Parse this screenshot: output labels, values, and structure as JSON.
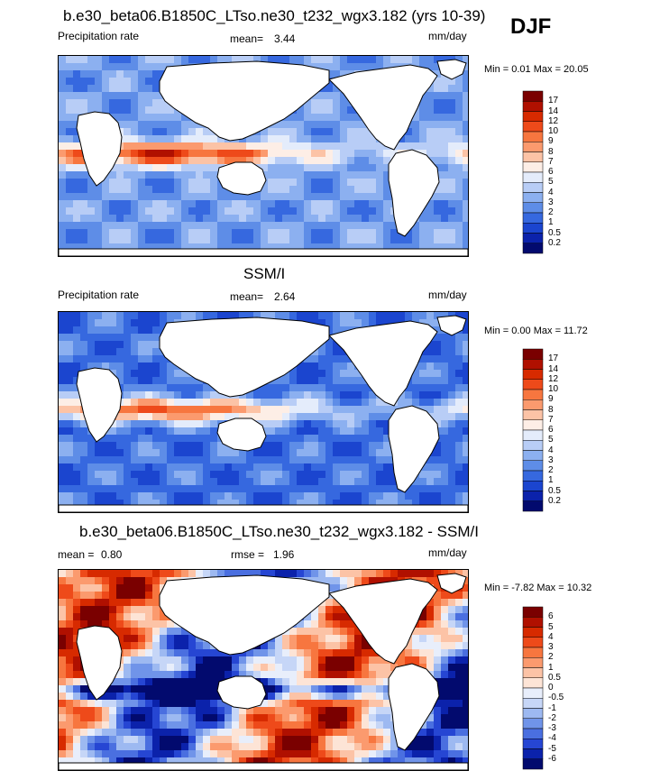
{
  "season_label": "DJF",
  "panels": [
    {
      "title": "b.e30_beta06.B1850C_LTso.ne30_t232_wgx3.182 (yrs 10-39)",
      "left_label": "Precipitation rate",
      "stat1_label": "mean=",
      "stat1_value": "3.44",
      "stat2_label": "",
      "stat2_value": "",
      "units": "mm/day",
      "minmax": "Min =   0.01 Max =  20.05"
    },
    {
      "title": "SSM/I",
      "left_label": "Precipitation rate",
      "stat1_label": "mean=",
      "stat1_value": "2.64",
      "stat2_label": "",
      "stat2_value": "",
      "units": "mm/day",
      "minmax": "Min =   0.00 Max =  11.72"
    },
    {
      "title": "b.e30_beta06.B1850C_LTso.ne30_t232_wgx3.182 - SSM/I",
      "left_label": "mean =",
      "stat1_label": "",
      "stat1_value": "0.80",
      "stat2_label": "rmse =",
      "stat2_value": "1.96",
      "units": "mm/day",
      "minmax": "Min =  -7.82 Max =  10.32"
    }
  ],
  "chart_data": [
    {
      "type": "heatmap",
      "title": "b.e30_beta06.B1850C_LTso.ne30_t232_wgx3.182 (yrs 10-39)",
      "variable": "Precipitation rate",
      "units": "mm/day",
      "mean": 3.44,
      "min": 0.01,
      "max": 20.05,
      "colorbar_levels": [
        "17",
        "14",
        "12",
        "10",
        "9",
        "8",
        "7",
        "6",
        "5",
        "4",
        "3",
        "2",
        "1",
        "0.5",
        "0.2"
      ],
      "colors": [
        "#7a0000",
        "#b01000",
        "#d72a00",
        "#ee4a1a",
        "#f7763f",
        "#fb9a6e",
        "#fcc3a6",
        "#fdeee6",
        "#e4ecfb",
        "#b8cdf6",
        "#8cb0f0",
        "#5e8de7",
        "#3668df",
        "#1b45cf",
        "#0b22ab",
        "#020a6e"
      ]
    },
    {
      "type": "heatmap",
      "title": "SSM/I",
      "variable": "Precipitation rate",
      "units": "mm/day",
      "mean": 2.64,
      "min": 0.0,
      "max": 11.72,
      "colorbar_levels": [
        "17",
        "14",
        "12",
        "10",
        "9",
        "8",
        "7",
        "6",
        "5",
        "4",
        "3",
        "2",
        "1",
        "0.5",
        "0.2"
      ],
      "colors": [
        "#7a0000",
        "#b01000",
        "#d72a00",
        "#ee4a1a",
        "#f7763f",
        "#fb9a6e",
        "#fcc3a6",
        "#fdeee6",
        "#e4ecfb",
        "#b8cdf6",
        "#8cb0f0",
        "#5e8de7",
        "#3668df",
        "#1b45cf",
        "#0b22ab",
        "#020a6e"
      ]
    },
    {
      "type": "heatmap",
      "title": "b.e30_beta06.B1850C_LTso.ne30_t232_wgx3.182 - SSM/I",
      "units": "mm/day",
      "mean": 0.8,
      "rmse": 1.96,
      "min": -7.82,
      "max": 10.32,
      "colorbar_levels": [
        "6",
        "5",
        "4",
        "3",
        "2",
        "1",
        "0.5",
        "0",
        "-0.5",
        "-1",
        "-2",
        "-3",
        "-4",
        "-5",
        "-6"
      ],
      "colors": [
        "#7a0000",
        "#b01000",
        "#d72a00",
        "#ee4a1a",
        "#f7763f",
        "#fb9a6e",
        "#fcc3a6",
        "#fde4d6",
        "#e8eefb",
        "#c6d6f7",
        "#9db9f1",
        "#7094e9",
        "#4a6fe0",
        "#2646d3",
        "#0b22ab",
        "#020a6e"
      ]
    }
  ]
}
